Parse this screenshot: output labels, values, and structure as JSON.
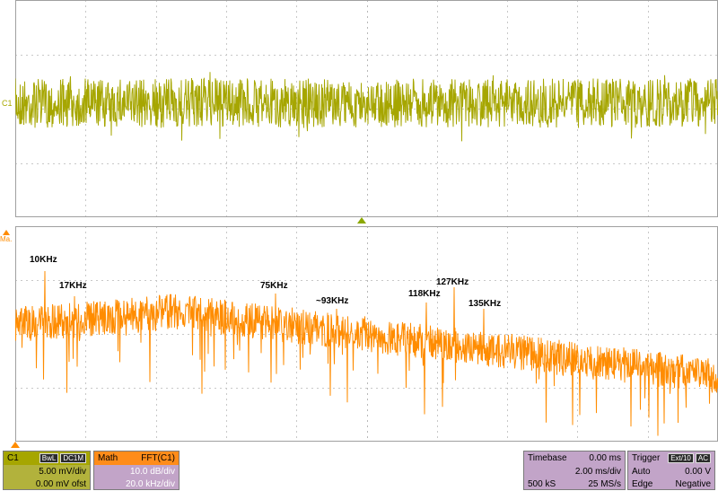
{
  "channel_marker": "C1",
  "math_marker": "Ma.",
  "peaks": [
    "10KHz",
    "17KHz",
    "75KHz",
    "~93KHz",
    "118KHz",
    "127KHz",
    "135KHz"
  ],
  "c1": {
    "label": "C1",
    "tag1": "BwL",
    "tag2": "DC1M",
    "vdiv": "5.00 mV/div",
    "offset": "0.00 mV ofst"
  },
  "math": {
    "label": "Math",
    "func": "FFT(C1)",
    "vdiv": "10.0 dB/div",
    "hdiv": "20.0 kHz/div"
  },
  "timebase": {
    "label": "Timebase",
    "delay": "0.00 ms",
    "tdiv": "2.00 ms/div",
    "samples": "500 kS",
    "rate": "25 MS/s"
  },
  "trigger": {
    "label": "Trigger",
    "tag": "Ext/10",
    "coupling": "AC",
    "mode": "Auto",
    "level": "0.00 V",
    "type": "Edge",
    "slope": "Negative"
  },
  "colors": {
    "ch1": "#a6a600",
    "math": "#ff8c00",
    "grid": "#b0b0b0",
    "panel": "#c2a4c8"
  }
}
